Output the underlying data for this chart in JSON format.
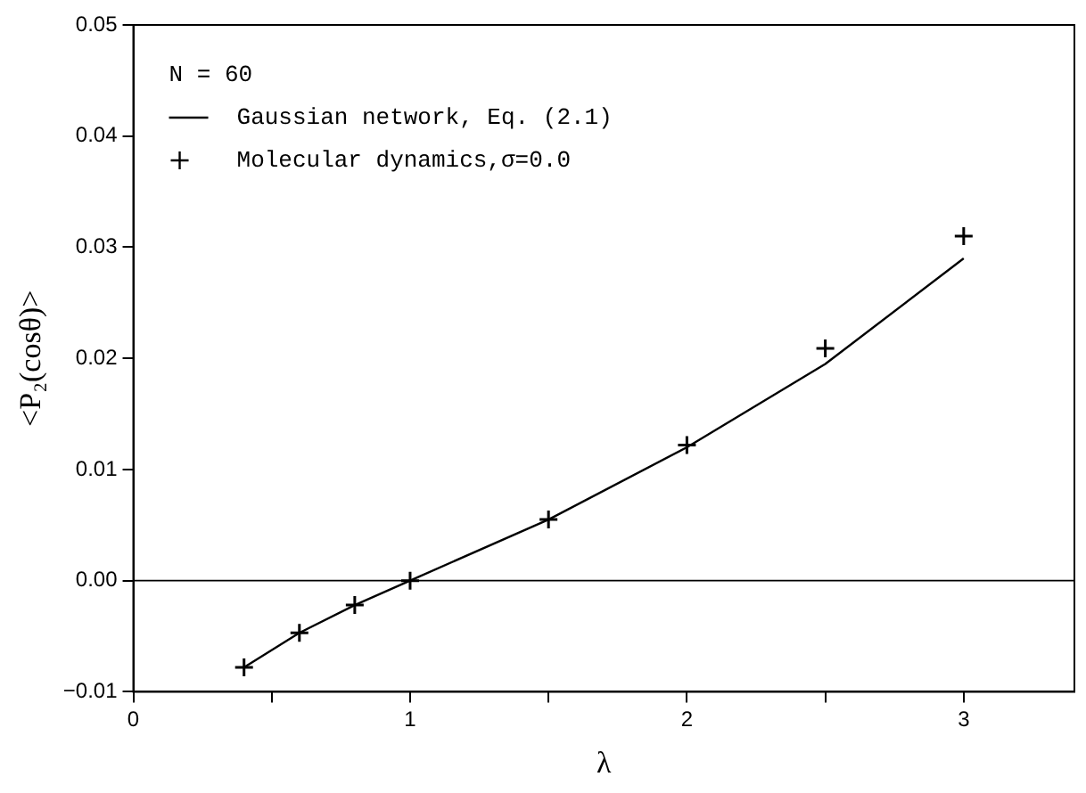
{
  "chart_data": {
    "type": "line",
    "xlabel": "λ",
    "ylabel": "<P₂(cosθ)>",
    "legend_title": "N = 60",
    "legend": "top left",
    "grid": false,
    "xlim": [
      0,
      3.4
    ],
    "xticks": [
      0,
      {
        "value": 0.5,
        "label": null
      },
      1,
      {
        "value": 1.5,
        "label": null
      },
      2,
      {
        "value": 2.5,
        "label": null
      },
      3
    ],
    "ylim": [
      -0.01,
      0.05
    ],
    "yticks": [
      {
        "value": -0.01,
        "label": "−0.01"
      },
      {
        "value": 0,
        "label": "0.00"
      },
      {
        "value": 0.01,
        "label": "0.01"
      },
      {
        "value": 0.02,
        "label": "0.02"
      },
      {
        "value": 0.03,
        "label": "0.03"
      },
      {
        "value": 0.04,
        "label": "0.04"
      },
      {
        "value": 0.05,
        "label": "0.05"
      }
    ],
    "ref_lines": [
      {
        "axis": "y",
        "value": 0,
        "color": "#000000"
      }
    ],
    "series": [
      {
        "name": "Gaussian network, Eq. (2.1)",
        "color": "#000000",
        "marker": "none",
        "line_style": "solid",
        "x": [
          0.4,
          0.6,
          0.8,
          1.0,
          1.5,
          2.0,
          2.5,
          3.0
        ],
        "values": [
          -0.0078,
          -0.0047,
          -0.0022,
          0,
          0.0055,
          0.012,
          0.0195,
          0.029
        ]
      },
      {
        "name": "Molecular dynamics,σ=0.0",
        "type": "scatter",
        "color": "#000000",
        "marker": "cross",
        "x": [
          0.4,
          0.6,
          0.8,
          1.0,
          1.5,
          2.0,
          2.5,
          3.0
        ],
        "values": [
          -0.0078,
          -0.0047,
          -0.0022,
          0,
          0.0055,
          0.0122,
          0.0209,
          0.031
        ]
      }
    ]
  }
}
